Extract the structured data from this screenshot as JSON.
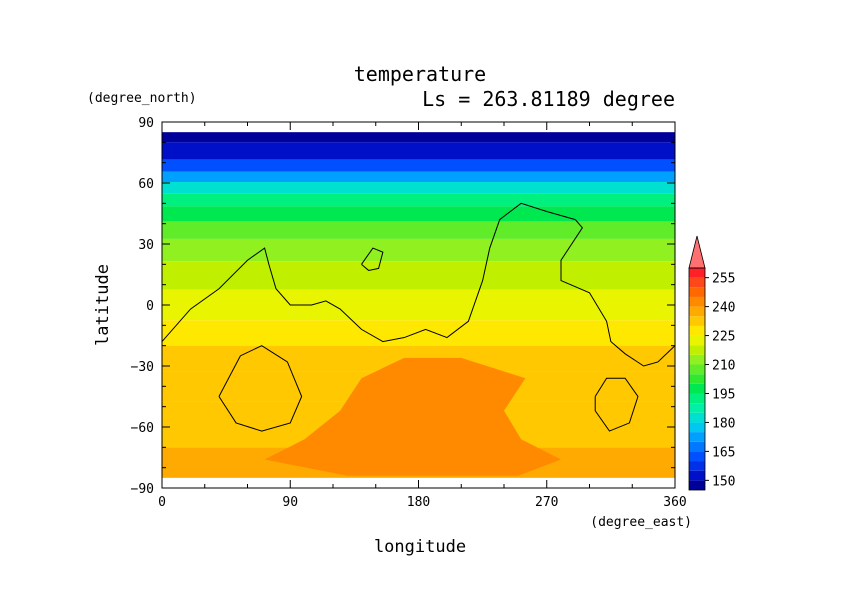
{
  "chart_data": {
    "type": "heatmap",
    "title": "temperature",
    "subtitle": "Ls = 263.81189 degree",
    "xlabel": "longitude",
    "ylabel": "latitude",
    "x_unit": "(degree_east)",
    "y_unit": "(degree_north)",
    "xlim": [
      0,
      360
    ],
    "ylim": [
      -90,
      90
    ],
    "x_ticks": [
      0,
      90,
      180,
      270,
      360
    ],
    "y_ticks": [
      90,
      60,
      30,
      0,
      -30,
      -60,
      -90
    ],
    "x_tick_labels": [
      "0",
      "90",
      "180",
      "270",
      "360"
    ],
    "y_tick_labels": [
      "90",
      "60",
      "30",
      "0",
      "−30",
      "−60",
      "−90"
    ],
    "data_lat_range": [
      -85,
      85
    ],
    "colorbar": {
      "tick_values": [
        150,
        165,
        180,
        195,
        210,
        225,
        240,
        255
      ],
      "tick_labels": [
        "150",
        "165",
        "180",
        "195",
        "210",
        "225",
        "240",
        "255"
      ],
      "levels": [
        145,
        150,
        155,
        160,
        165,
        170,
        175,
        180,
        185,
        190,
        195,
        200,
        205,
        210,
        215,
        220,
        225,
        230,
        235,
        240,
        245,
        250,
        255,
        260
      ],
      "colors": [
        "#00009a",
        "#0010c8",
        "#0030e8",
        "#0050ff",
        "#0078ff",
        "#00a0ff",
        "#00c8f0",
        "#00e0d0",
        "#00f0a8",
        "#00f080",
        "#00e850",
        "#30e830",
        "#60ec28",
        "#90f020",
        "#c0f000",
        "#e8f400",
        "#ffe800",
        "#ffc800",
        "#ffaa00",
        "#ff8a00",
        "#ff6800",
        "#ff4818",
        "#ff2028"
      ],
      "extend_max": true,
      "extend_color": "#ff7070"
    },
    "temperature_bands": [
      {
        "lat": 85,
        "value": 148
      },
      {
        "lat": 75,
        "value": 150
      },
      {
        "lat": 68,
        "value": 160
      },
      {
        "lat": 63,
        "value": 172
      },
      {
        "lat": 58,
        "value": 182
      },
      {
        "lat": 52,
        "value": 190
      },
      {
        "lat": 45,
        "value": 198
      },
      {
        "lat": 37,
        "value": 205
      },
      {
        "lat": 28,
        "value": 212
      },
      {
        "lat": 15,
        "value": 218
      },
      {
        "lat": 0,
        "value": 222
      },
      {
        "lat": -15,
        "value": 226
      },
      {
        "lat": -25,
        "value": 230
      },
      {
        "lat": -40,
        "value": 232
      },
      {
        "lat": -55,
        "value": 234
      },
      {
        "lat": -85,
        "value": 236
      }
    ],
    "warm_region": {
      "value": 240,
      "polygon": [
        [
          72,
          -76
        ],
        [
          100,
          -66
        ],
        [
          125,
          -52
        ],
        [
          140,
          -36
        ],
        [
          170,
          -26
        ],
        [
          210,
          -26
        ],
        [
          255,
          -36
        ],
        [
          240,
          -52
        ],
        [
          252,
          -66
        ],
        [
          280,
          -76
        ],
        [
          250,
          -84
        ],
        [
          130,
          -84
        ]
      ]
    },
    "topography_contours": [
      [
        [
          0,
          -18
        ],
        [
          20,
          -2
        ],
        [
          40,
          8
        ],
        [
          60,
          22
        ],
        [
          72,
          28
        ],
        [
          75,
          20
        ],
        [
          80,
          8
        ],
        [
          90,
          0
        ],
        [
          105,
          0
        ],
        [
          115,
          2
        ],
        [
          125,
          -2
        ],
        [
          140,
          -12
        ],
        [
          155,
          -18
        ],
        [
          170,
          -16
        ],
        [
          185,
          -12
        ],
        [
          200,
          -16
        ],
        [
          215,
          -8
        ],
        [
          225,
          12
        ],
        [
          230,
          28
        ],
        [
          237,
          42
        ],
        [
          252,
          50
        ],
        [
          270,
          46
        ],
        [
          290,
          42
        ],
        [
          295,
          38
        ],
        [
          280,
          22
        ],
        [
          280,
          12
        ],
        [
          300,
          6
        ],
        [
          312,
          -8
        ],
        [
          315,
          -18
        ],
        [
          325,
          -24
        ],
        [
          338,
          -30
        ],
        [
          348,
          -28
        ],
        [
          360,
          -20
        ]
      ],
      [
        [
          140,
          20
        ],
        [
          148,
          28
        ],
        [
          155,
          26
        ],
        [
          152,
          18
        ],
        [
          145,
          17
        ],
        [
          140,
          20
        ]
      ],
      [
        [
          40,
          -45
        ],
        [
          55,
          -25
        ],
        [
          70,
          -20
        ],
        [
          88,
          -28
        ],
        [
          98,
          -45
        ],
        [
          90,
          -58
        ],
        [
          70,
          -62
        ],
        [
          52,
          -58
        ],
        [
          40,
          -45
        ]
      ],
      [
        [
          304,
          -45
        ],
        [
          312,
          -36
        ],
        [
          325,
          -36
        ],
        [
          334,
          -45
        ],
        [
          328,
          -58
        ],
        [
          314,
          -62
        ],
        [
          304,
          -52
        ],
        [
          304,
          -45
        ]
      ]
    ]
  }
}
